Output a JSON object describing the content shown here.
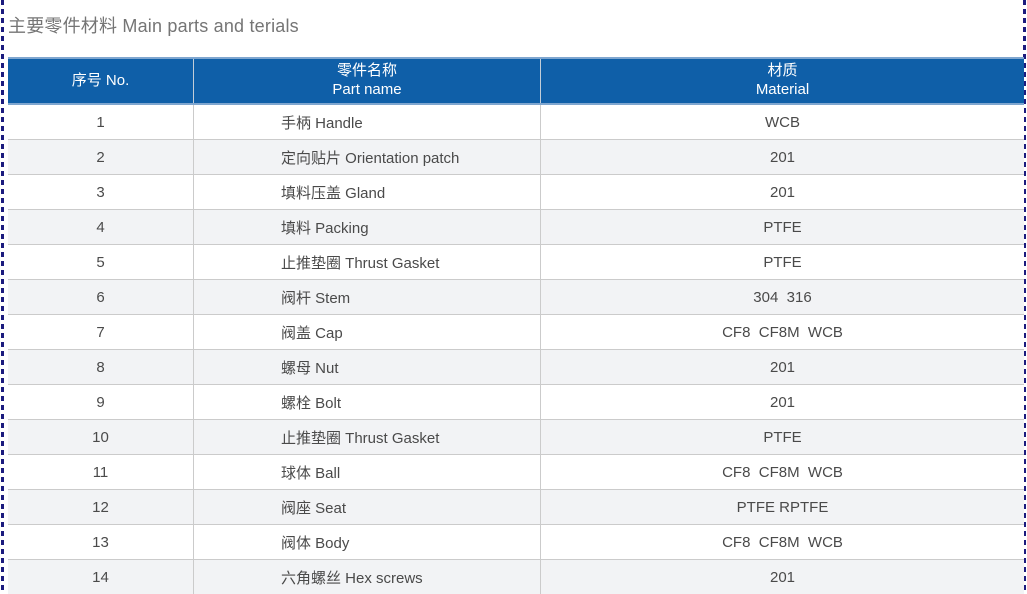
{
  "page": {
    "title": "主要零件材料 Main parts and terials"
  },
  "table": {
    "header": {
      "no_label": "序号 No.",
      "part_zh": "零件名称",
      "part_en": "Part name",
      "material_zh": "材质",
      "material_en": "Material"
    },
    "rows": [
      {
        "no": "1",
        "part": "手柄 Handle",
        "material": "WCB"
      },
      {
        "no": "2",
        "part": "定向贴片 Orientation patch",
        "material": "201"
      },
      {
        "no": "3",
        "part": "填料压盖 Gland",
        "material": "201"
      },
      {
        "no": "4",
        "part": "填料 Packing",
        "material": "PTFE"
      },
      {
        "no": "5",
        "part": "止推垫圈 Thrust Gasket",
        "material": "PTFE"
      },
      {
        "no": "6",
        "part": "阀杆 Stem",
        "material": "304  316"
      },
      {
        "no": "7",
        "part": "阀盖 Cap",
        "material": "CF8  CF8M  WCB"
      },
      {
        "no": "8",
        "part": "螺母 Nut",
        "material": "201"
      },
      {
        "no": "9",
        "part": "螺栓 Bolt",
        "material": "201"
      },
      {
        "no": "10",
        "part": "止推垫圈 Thrust Gasket",
        "material": "PTFE"
      },
      {
        "no": "11",
        "part": "球体 Ball",
        "material": "CF8  CF8M  WCB"
      },
      {
        "no": "12",
        "part": "阀座 Seat",
        "material": "PTFE RPTFE"
      },
      {
        "no": "13",
        "part": "阀体 Body",
        "material": "CF8  CF8M  WCB"
      },
      {
        "no": "14",
        "part": "六角螺丝 Hex screws",
        "material": "201"
      }
    ]
  },
  "colors": {
    "header_blue": "#0f5fa8",
    "header_edge_blue": "#7fa6cf",
    "dashed_border_navy": "#1b1b7e",
    "row_alt_gray": "#f2f3f5",
    "divider_gray": "#cbcbcb",
    "title_gray": "#757575",
    "body_text": "#4a4a4a"
  }
}
